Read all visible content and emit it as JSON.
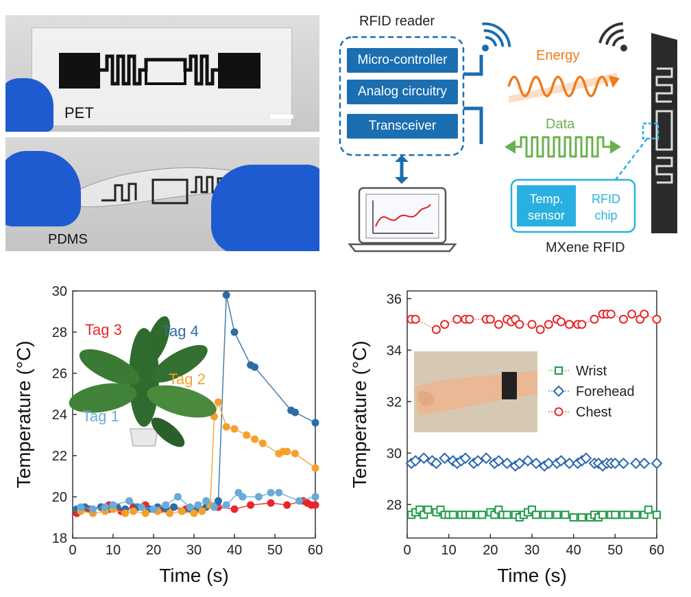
{
  "panel_a": {
    "pet_label": "PET",
    "pdms_label": "PDMS"
  },
  "panel_b": {
    "reader_title": "RFID reader",
    "controller_label": "Micro-controller",
    "analog_label": "Analog circuitry",
    "transceiver_label": "Transceiver",
    "energy_label": "Energy",
    "data_label": "Data",
    "temp_sensor_label": "Temp. sensor",
    "rfid_chip_label": "RFID chip",
    "tag_caption": "MXene RFID",
    "colors": {
      "reader_blue": "#1b6eb0",
      "energy_orange": "#f07a1a",
      "data_green": "#6ab04c",
      "chip_cyan": "#2ab0e0"
    }
  },
  "chart_data": [
    {
      "type": "scatter",
      "title": "",
      "xlabel": "Time (s)",
      "ylabel": "Temperature (°C)",
      "xlim": [
        0,
        60
      ],
      "ylim": [
        18,
        30
      ],
      "xticks": [
        "0",
        "10",
        "20",
        "30",
        "40",
        "50",
        "60"
      ],
      "yticks": [
        "18",
        "20",
        "22",
        "24",
        "26",
        "28",
        "30"
      ],
      "annotations": [
        "Tag 3",
        "Tag 4",
        "Tag 2",
        "Tag 1"
      ],
      "series": [
        {
          "name": "Tag 3",
          "color": "#e8262a",
          "x": [
            1,
            4,
            7,
            9,
            12,
            15,
            18,
            22,
            25,
            28,
            31,
            36,
            40,
            44,
            49,
            53,
            57,
            58,
            59,
            60
          ],
          "y": [
            19.2,
            19.4,
            19.5,
            19.6,
            19.3,
            19.5,
            19.6,
            19.4,
            19.5,
            19.4,
            19.5,
            19.5,
            19.4,
            19.6,
            19.7,
            19.6,
            19.8,
            19.7,
            19.6,
            19.6
          ]
        },
        {
          "name": "Tag 4",
          "color": "#2e6da4",
          "x": [
            1,
            3,
            5,
            7,
            9,
            11,
            13,
            16,
            19,
            21,
            23,
            25,
            27,
            29,
            31,
            33,
            36,
            38,
            40,
            44,
            45,
            54,
            55,
            60
          ],
          "y": [
            19.4,
            19.5,
            19.4,
            19.5,
            19.4,
            19.5,
            19.4,
            19.5,
            19.4,
            19.5,
            19.4,
            19.5,
            19.3,
            19.4,
            19.4,
            19.5,
            19.8,
            29.8,
            28.0,
            26.4,
            26.3,
            24.2,
            24.1,
            23.6
          ]
        },
        {
          "name": "Tag 2",
          "color": "#f5a02a",
          "x": [
            2,
            5,
            8,
            10,
            13,
            15,
            18,
            21,
            24,
            27,
            30,
            32,
            34,
            35,
            36,
            38,
            40,
            43,
            45,
            47,
            51,
            52,
            53,
            55,
            60
          ],
          "y": [
            19.3,
            19.2,
            19.3,
            19.4,
            19.2,
            19.3,
            19.2,
            19.3,
            19.2,
            19.3,
            19.2,
            19.3,
            19.6,
            23.9,
            24.6,
            23.4,
            23.3,
            23.0,
            22.8,
            22.6,
            22.1,
            22.2,
            22.2,
            22.1,
            21.4
          ]
        },
        {
          "name": "Tag 1",
          "color": "#6aaad8",
          "x": [
            2,
            5,
            8,
            10,
            14,
            17,
            20,
            23,
            26,
            29,
            31,
            33,
            35,
            38,
            41,
            42,
            46,
            49,
            51,
            56,
            60
          ],
          "y": [
            19.5,
            19.4,
            19.5,
            19.6,
            19.8,
            19.5,
            19.4,
            19.6,
            20.0,
            19.5,
            19.6,
            19.8,
            19.5,
            19.6,
            20.2,
            20.0,
            20.0,
            20.2,
            20.2,
            19.8,
            20.0
          ]
        }
      ]
    },
    {
      "type": "scatter",
      "title": "",
      "xlabel": "Time (s)",
      "ylabel": "Temperature (°C)",
      "xlim": [
        0,
        60
      ],
      "ylim": [
        26.7,
        36.3
      ],
      "xticks": [
        "0",
        "10",
        "20",
        "30",
        "40",
        "50",
        "60"
      ],
      "yticks": [
        "28",
        "30",
        "32",
        "34",
        "36"
      ],
      "legend": "upper-right-of-center",
      "series": [
        {
          "name": "Wrist",
          "color": "#1f9a4a",
          "marker": "square",
          "x": [
            1,
            2,
            3,
            4,
            5,
            7,
            8,
            9,
            10,
            11,
            13,
            14,
            15,
            17,
            18,
            20,
            21,
            22,
            23,
            24,
            26,
            27,
            28,
            29,
            30,
            31,
            33,
            34,
            36,
            38,
            40,
            42,
            44,
            45,
            46,
            47,
            49,
            50,
            52,
            53,
            55,
            57,
            58,
            60
          ],
          "y": [
            27.6,
            27.7,
            27.8,
            27.6,
            27.8,
            27.7,
            27.8,
            27.6,
            27.6,
            27.6,
            27.6,
            27.6,
            27.6,
            27.6,
            27.6,
            27.7,
            27.6,
            27.8,
            27.6,
            27.6,
            27.6,
            27.5,
            27.6,
            27.7,
            27.8,
            27.6,
            27.6,
            27.6,
            27.6,
            27.6,
            27.5,
            27.5,
            27.5,
            27.6,
            27.5,
            27.6,
            27.6,
            27.6,
            27.6,
            27.6,
            27.6,
            27.6,
            27.8,
            27.6
          ]
        },
        {
          "name": "Forehead",
          "color": "#2a67b0",
          "marker": "diamond",
          "x": [
            1,
            2,
            4,
            6,
            7,
            9,
            11,
            12,
            13,
            14,
            16,
            17,
            19,
            21,
            22,
            24,
            26,
            27,
            29,
            31,
            33,
            34,
            36,
            37,
            39,
            41,
            42,
            43,
            45,
            46,
            47,
            48,
            49,
            50,
            52,
            55,
            57,
            60
          ],
          "y": [
            29.6,
            29.7,
            29.8,
            29.7,
            29.6,
            29.8,
            29.7,
            29.6,
            29.7,
            29.8,
            29.6,
            29.7,
            29.8,
            29.6,
            29.7,
            29.6,
            29.5,
            29.6,
            29.7,
            29.6,
            29.5,
            29.6,
            29.6,
            29.7,
            29.6,
            29.6,
            29.7,
            29.8,
            29.6,
            29.6,
            29.5,
            29.6,
            29.6,
            29.6,
            29.6,
            29.6,
            29.6,
            29.6
          ]
        },
        {
          "name": "Chest",
          "color": "#e8262a",
          "marker": "circle",
          "x": [
            1,
            2,
            7,
            9,
            12,
            14,
            15,
            19,
            20,
            22,
            24,
            25,
            26,
            27,
            30,
            32,
            34,
            36,
            37,
            39,
            41,
            42,
            45,
            47,
            48,
            49,
            52,
            54,
            56,
            57,
            60
          ],
          "y": [
            35.2,
            35.2,
            34.8,
            35.0,
            35.2,
            35.2,
            35.2,
            35.2,
            35.2,
            35.0,
            35.2,
            35.1,
            35.2,
            35.0,
            35.0,
            34.8,
            35.0,
            35.2,
            35.1,
            35.0,
            35.0,
            35.0,
            35.2,
            35.4,
            35.4,
            35.4,
            35.2,
            35.4,
            35.2,
            35.4,
            35.2
          ]
        }
      ]
    }
  ]
}
